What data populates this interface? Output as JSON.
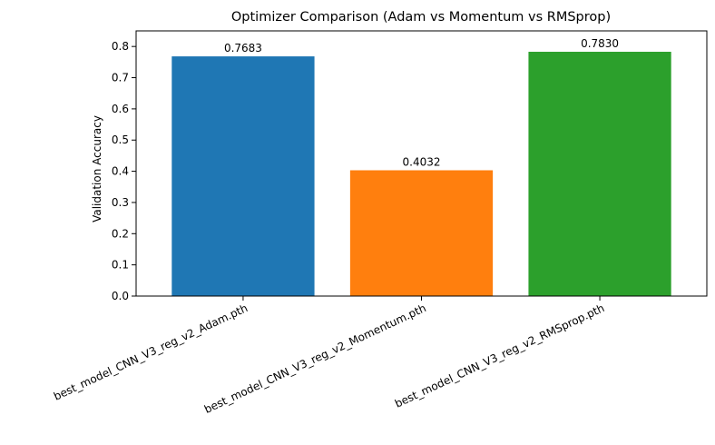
{
  "chart_data": {
    "type": "bar",
    "title": "Optimizer Comparison (Adam vs Momentum vs RMSprop)",
    "xlabel": "",
    "ylabel": "Validation Accuracy",
    "categories": [
      "best_model_CNN_V3_reg_v2_Adam.pth",
      "best_model_CNN_V3_reg_v2_Momentum.pth",
      "best_model_CNN_V3_reg_v2_RMSprop.pth"
    ],
    "values": [
      0.7683,
      0.4032,
      0.783
    ],
    "value_labels": [
      "0.7683",
      "0.4032",
      "0.7830"
    ],
    "colors": [
      "#1f77b4",
      "#ff7f0e",
      "#2ca02c"
    ],
    "ylim": [
      0,
      0.85
    ],
    "yticks": [
      0.0,
      0.1,
      0.2,
      0.3,
      0.4,
      0.5,
      0.6,
      0.7,
      0.8
    ],
    "ytick_labels": [
      "0.0",
      "0.1",
      "0.2",
      "0.3",
      "0.4",
      "0.5",
      "0.6",
      "0.7",
      "0.8"
    ],
    "grid": false,
    "legend": "none"
  }
}
